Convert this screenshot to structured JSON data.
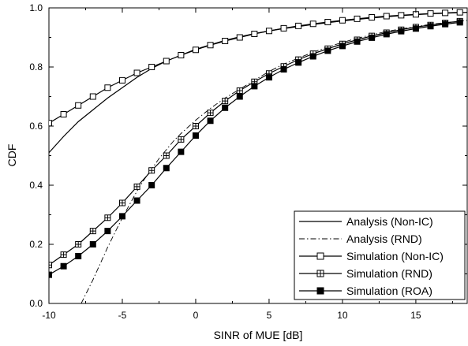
{
  "chart_data": {
    "type": "line",
    "xlabel": "SINR of MUE [dB]",
    "ylabel": "CDF",
    "xlim": [
      -10,
      18.5
    ],
    "ylim": [
      0,
      1
    ],
    "x_ticks": [
      -10,
      -5,
      0,
      5,
      10,
      15
    ],
    "y_ticks": [
      0.0,
      0.2,
      0.4,
      0.6,
      0.8,
      1.0
    ],
    "x_tick_labels": [
      "-10",
      "-5",
      "0",
      "5",
      "10",
      "15"
    ],
    "y_tick_labels": [
      "0.0",
      "0.2",
      "0.4",
      "0.6",
      "0.8",
      "1.0"
    ],
    "grid": false,
    "legend": "bottom-right",
    "series": [
      {
        "name": "Analysis (Non-IC)",
        "style": "solid",
        "marker": "none",
        "x": [
          -10,
          -9,
          -8,
          -7,
          -6,
          -5,
          -4,
          -3,
          -2,
          -1,
          0,
          1,
          2,
          3,
          4,
          5,
          6,
          7,
          8,
          9,
          10,
          11,
          12,
          13,
          14,
          15,
          16,
          17,
          18,
          18.5
        ],
        "y": [
          0.51,
          0.565,
          0.615,
          0.655,
          0.695,
          0.73,
          0.765,
          0.795,
          0.82,
          0.84,
          0.86,
          0.875,
          0.89,
          0.902,
          0.913,
          0.922,
          0.93,
          0.937,
          0.944,
          0.95,
          0.956,
          0.961,
          0.966,
          0.97,
          0.974,
          0.977,
          0.98,
          0.982,
          0.984,
          0.985
        ]
      },
      {
        "name": "Analysis (RND)",
        "style": "dashdot",
        "marker": "none",
        "x": [
          -7.8,
          -7.5,
          -7,
          -6.5,
          -6,
          -5.5,
          -5,
          -4.5,
          -4,
          -3.5,
          -3,
          -2.5,
          -2,
          -1.5,
          -1,
          0,
          1,
          2,
          3,
          4,
          5,
          6,
          7,
          8,
          9,
          10,
          11,
          12,
          13,
          14,
          15,
          16,
          17,
          18,
          18.5
        ],
        "y": [
          0.0,
          0.03,
          0.08,
          0.135,
          0.19,
          0.24,
          0.29,
          0.335,
          0.38,
          0.42,
          0.455,
          0.49,
          0.52,
          0.55,
          0.575,
          0.62,
          0.66,
          0.695,
          0.725,
          0.755,
          0.785,
          0.81,
          0.83,
          0.85,
          0.868,
          0.883,
          0.897,
          0.909,
          0.92,
          0.929,
          0.937,
          0.944,
          0.95,
          0.955,
          0.958
        ]
      },
      {
        "name": "Simulation (Non-IC)",
        "style": "solid",
        "marker": "open-square",
        "x": [
          -10,
          -9,
          -8,
          -7,
          -6,
          -5,
          -4,
          -3,
          -2,
          -1,
          0,
          1,
          2,
          3,
          4,
          5,
          6,
          7,
          8,
          9,
          10,
          11,
          12,
          13,
          14,
          15,
          16,
          17,
          18
        ],
        "y": [
          0.61,
          0.64,
          0.67,
          0.7,
          0.73,
          0.755,
          0.78,
          0.8,
          0.82,
          0.84,
          0.858,
          0.874,
          0.888,
          0.9,
          0.912,
          0.922,
          0.931,
          0.939,
          0.946,
          0.952,
          0.958,
          0.963,
          0.968,
          0.972,
          0.975,
          0.978,
          0.981,
          0.983,
          0.985
        ]
      },
      {
        "name": "Simulation (RND)",
        "style": "solid",
        "marker": "crossed-square",
        "x": [
          -10,
          -9,
          -8,
          -7,
          -6,
          -5,
          -4,
          -3,
          -2,
          -1,
          0,
          1,
          2,
          3,
          4,
          5,
          6,
          7,
          8,
          9,
          10,
          11,
          12,
          13,
          14,
          15,
          16,
          17,
          18
        ],
        "y": [
          0.13,
          0.165,
          0.2,
          0.245,
          0.29,
          0.34,
          0.395,
          0.45,
          0.5,
          0.555,
          0.6,
          0.645,
          0.685,
          0.72,
          0.75,
          0.778,
          0.802,
          0.825,
          0.845,
          0.862,
          0.878,
          0.892,
          0.905,
          0.916,
          0.926,
          0.935,
          0.942,
          0.949,
          0.955
        ]
      },
      {
        "name": "Simulation (ROA)",
        "style": "solid",
        "marker": "filled-square",
        "x": [
          -10,
          -9,
          -8,
          -7,
          -6,
          -5,
          -4,
          -3,
          -2,
          -1,
          0,
          1,
          2,
          3,
          4,
          5,
          6,
          7,
          8,
          9,
          10,
          11,
          12,
          13,
          14,
          15,
          16,
          17,
          18
        ],
        "y": [
          0.097,
          0.126,
          0.16,
          0.2,
          0.245,
          0.295,
          0.348,
          0.4,
          0.458,
          0.513,
          0.568,
          0.618,
          0.662,
          0.7,
          0.735,
          0.765,
          0.792,
          0.815,
          0.836,
          0.855,
          0.871,
          0.886,
          0.899,
          0.911,
          0.921,
          0.93,
          0.938,
          0.945,
          0.951
        ]
      }
    ]
  }
}
